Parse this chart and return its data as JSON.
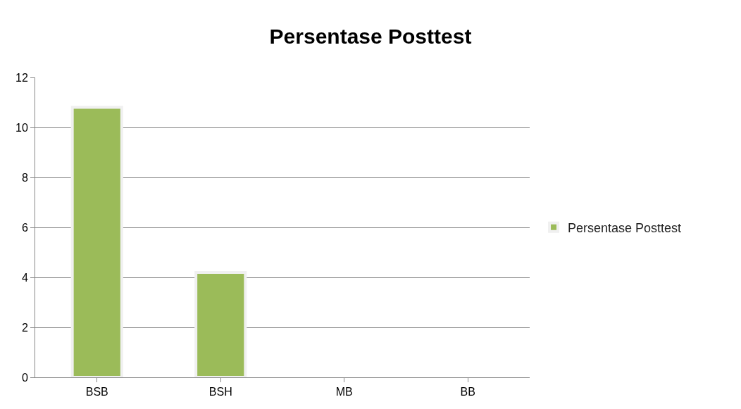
{
  "chart_data": {
    "type": "bar",
    "title": "Persentase Posttest",
    "categories": [
      "BSB",
      "BSH",
      "MB",
      "BB"
    ],
    "series": [
      {
        "name": "Persentase Posttest",
        "color": "#9bbb59",
        "values": [
          10.8,
          4.2,
          0,
          0
        ]
      }
    ],
    "ylim": [
      0,
      12
    ],
    "yticks": [
      0,
      2,
      4,
      6,
      8,
      10,
      12
    ],
    "grid": "y",
    "legend": "right"
  }
}
